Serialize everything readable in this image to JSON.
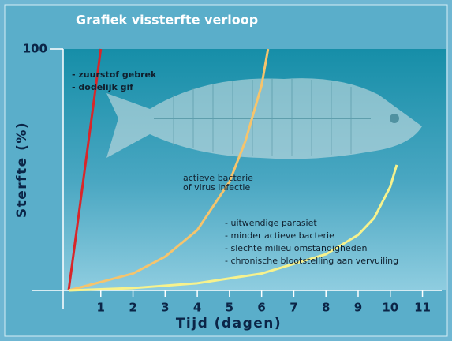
{
  "chart_data": {
    "type": "line",
    "title": "Grafiek vissterfte verloop",
    "xlabel": "Tijd (dagen)",
    "ylabel": "Sterfte (%)",
    "xlim": [
      0,
      11.6
    ],
    "ylim": [
      0,
      100
    ],
    "xticks": [
      1,
      2,
      3,
      4,
      5,
      6,
      7,
      8,
      9,
      10,
      11
    ],
    "yticks": [
      100
    ],
    "series": [
      {
        "color": "#d8262a",
        "x": [
          0,
          1
        ],
        "values": [
          0,
          100
        ]
      },
      {
        "color": "#f6c46c",
        "x": [
          0,
          2,
          3,
          4,
          5,
          5.5,
          6,
          6.2
        ],
        "values": [
          0,
          7,
          14,
          25,
          45,
          62,
          85,
          100
        ]
      },
      {
        "color": "#f7f28c",
        "x": [
          0,
          2,
          4,
          6,
          8,
          9,
          9.5,
          10,
          10.2
        ],
        "values": [
          0,
          1,
          3,
          7,
          15,
          23,
          30,
          43,
          52
        ]
      }
    ],
    "annotations": [
      [
        "- zuurstof gebrek",
        "- dodelijk gif"
      ],
      [
        "actieve bacterie",
        "of virus infectie"
      ],
      [
        "- uitwendige parasiet",
        "- minder actieve bacterie",
        "- slechte milieu omstandigheden",
        "- chronische blootstelling aan vervuiling"
      ]
    ]
  }
}
